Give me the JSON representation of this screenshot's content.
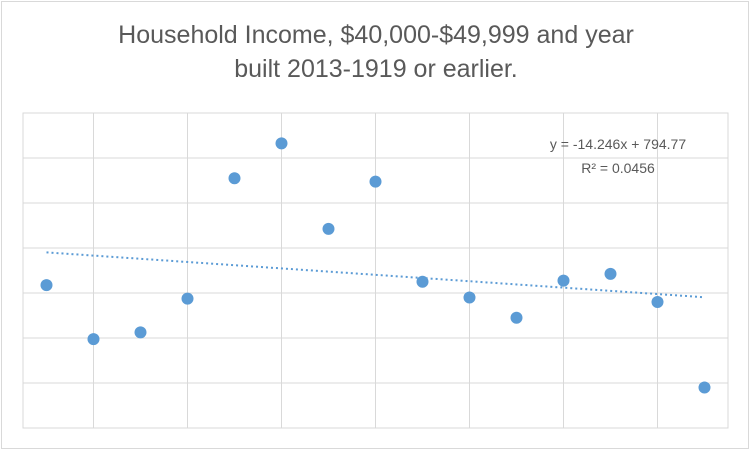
{
  "chart_data": {
    "type": "scatter",
    "title_lines": [
      "Household Income, $40,000-$49,999 and year",
      "built 2013-1919 or earlier."
    ],
    "xlabel": "",
    "ylabel": "",
    "xlim": [
      0.5,
      15.5
    ],
    "ylim": [
      0,
      1400
    ],
    "x": [
      1,
      2,
      3,
      4,
      5,
      6,
      7,
      8,
      9,
      10,
      11,
      12,
      13,
      14,
      15
    ],
    "y": [
      635,
      395,
      425,
      575,
      1110,
      1265,
      885,
      1095,
      650,
      580,
      490,
      655,
      685,
      560,
      180
    ],
    "trendline": {
      "type": "linear",
      "slope": -14.246,
      "intercept": 794.77,
      "equation_label": "y = -14.246x + 794.77",
      "r2_label": "R² = 0.0456"
    },
    "grid": true,
    "legend": "none",
    "colors": {
      "marker": "#5b9bd5",
      "trendline": "#5b9bd5",
      "grid": "#d9d9d9",
      "text": "#595959"
    }
  }
}
